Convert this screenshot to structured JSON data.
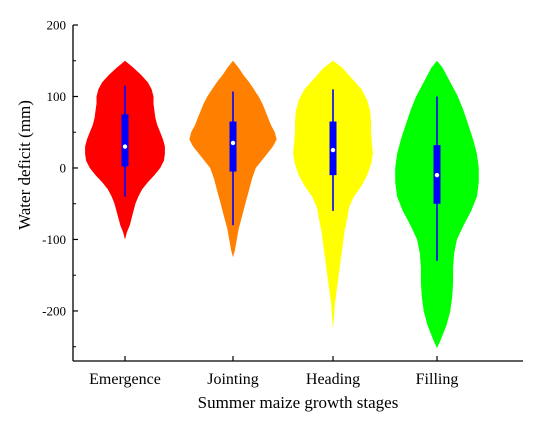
{
  "chart_data": {
    "type": "violin",
    "title": "",
    "xlabel": "Summer maize growth stages",
    "ylabel": "Water deficit (mm)",
    "ylim": [
      -270,
      200
    ],
    "yticks": [
      200,
      100,
      0,
      -100,
      -200
    ],
    "ytick_labels": [
      "200",
      "100",
      "0",
      "-100",
      "-200"
    ],
    "grid": false,
    "legend": "none",
    "categories": [
      "Emergence",
      "Jointing",
      "Heading",
      "Filling"
    ],
    "colors": [
      "#ff0000",
      "#ff8000",
      "#ffff00",
      "#00ff00"
    ],
    "box_color": "#0000ff",
    "median_marker_color": "#ffffff",
    "violins": [
      {
        "category": "Emergence",
        "min": -100,
        "max": 150,
        "whisker_low": -40,
        "q1": 2,
        "median": 30,
        "q3": 75,
        "whisker_high": 115,
        "profile": [
          [
            -100,
            0
          ],
          [
            -90,
            2
          ],
          [
            -80,
            5
          ],
          [
            -65,
            8
          ],
          [
            -50,
            11
          ],
          [
            -40,
            14
          ],
          [
            -30,
            18
          ],
          [
            -20,
            24
          ],
          [
            -10,
            31
          ],
          [
            0,
            37
          ],
          [
            10,
            41
          ],
          [
            20,
            42
          ],
          [
            30,
            42
          ],
          [
            40,
            40
          ],
          [
            50,
            37
          ],
          [
            60,
            34
          ],
          [
            70,
            32
          ],
          [
            80,
            31
          ],
          [
            90,
            30
          ],
          [
            100,
            30
          ],
          [
            110,
            28
          ],
          [
            120,
            24
          ],
          [
            130,
            17
          ],
          [
            140,
            9
          ],
          [
            150,
            0
          ]
        ]
      },
      {
        "category": "Jointing",
        "min": -125,
        "max": 150,
        "whisker_low": -80,
        "q1": -5,
        "median": 35,
        "q3": 65,
        "whisker_high": 107,
        "profile": [
          [
            -125,
            0
          ],
          [
            -115,
            2
          ],
          [
            -100,
            4
          ],
          [
            -85,
            6
          ],
          [
            -70,
            9
          ],
          [
            -50,
            13
          ],
          [
            -30,
            17
          ],
          [
            -15,
            20
          ],
          [
            0,
            24
          ],
          [
            15,
            33
          ],
          [
            30,
            42
          ],
          [
            40,
            46
          ],
          [
            50,
            44
          ],
          [
            60,
            40
          ],
          [
            70,
            37
          ],
          [
            80,
            34
          ],
          [
            90,
            31
          ],
          [
            100,
            27
          ],
          [
            110,
            22
          ],
          [
            120,
            17
          ],
          [
            130,
            11
          ],
          [
            140,
            6
          ],
          [
            150,
            0
          ]
        ]
      },
      {
        "category": "Heading",
        "min": -225,
        "max": 150,
        "whisker_low": -60,
        "q1": -10,
        "median": 25,
        "q3": 65,
        "whisker_high": 110,
        "profile": [
          [
            -225,
            0
          ],
          [
            -210,
            1
          ],
          [
            -190,
            2
          ],
          [
            -170,
            4
          ],
          [
            -150,
            6
          ],
          [
            -130,
            8
          ],
          [
            -110,
            10
          ],
          [
            -90,
            12
          ],
          [
            -70,
            15
          ],
          [
            -55,
            17
          ],
          [
            -40,
            22
          ],
          [
            -25,
            30
          ],
          [
            -10,
            36
          ],
          [
            5,
            40
          ],
          [
            20,
            42
          ],
          [
            35,
            41
          ],
          [
            50,
            40
          ],
          [
            65,
            40
          ],
          [
            80,
            39
          ],
          [
            95,
            36
          ],
          [
            110,
            30
          ],
          [
            125,
            20
          ],
          [
            140,
            10
          ],
          [
            150,
            0
          ]
        ]
      },
      {
        "category": "Filling",
        "min": -252,
        "max": 150,
        "whisker_low": -130,
        "q1": -50,
        "median": -10,
        "q3": 32,
        "whisker_high": 100,
        "profile": [
          [
            -252,
            0
          ],
          [
            -240,
            4
          ],
          [
            -220,
            10
          ],
          [
            -200,
            14
          ],
          [
            -180,
            16
          ],
          [
            -160,
            17
          ],
          [
            -140,
            17
          ],
          [
            -120,
            18
          ],
          [
            -100,
            21
          ],
          [
            -80,
            28
          ],
          [
            -60,
            36
          ],
          [
            -40,
            42
          ],
          [
            -20,
            44
          ],
          [
            0,
            44
          ],
          [
            20,
            42
          ],
          [
            40,
            38
          ],
          [
            60,
            33
          ],
          [
            80,
            28
          ],
          [
            100,
            22
          ],
          [
            120,
            14
          ],
          [
            140,
            6
          ],
          [
            150,
            0
          ]
        ]
      }
    ]
  }
}
